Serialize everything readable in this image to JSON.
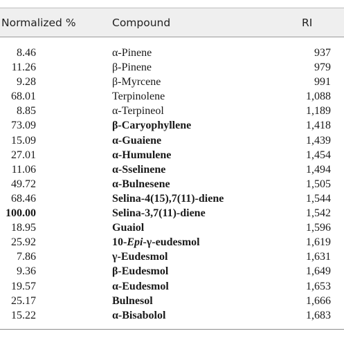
{
  "table": {
    "headers": {
      "normalized": "Normalized %",
      "compound": "Compound",
      "ri": "RI"
    },
    "rows": [
      {
        "normalized": "8.46",
        "compound": "α-Pinene",
        "ri": "937",
        "bold": false
      },
      {
        "normalized": "11.26",
        "compound": "β-Pinene",
        "ri": "979",
        "bold": false
      },
      {
        "normalized": "9.28",
        "compound": "β-Myrcene",
        "ri": "991",
        "bold": false
      },
      {
        "normalized": "68.01",
        "compound": "Terpinolene",
        "ri": "1,088",
        "bold": false
      },
      {
        "normalized": "8.85",
        "compound": "α-Terpineol",
        "ri": "1,189",
        "bold": false
      },
      {
        "normalized": "73.09",
        "compound": "β-Caryophyllene",
        "ri": "1,418",
        "bold": true
      },
      {
        "normalized": "15.09",
        "compound": "α-Guaiene",
        "ri": "1,439",
        "bold": true
      },
      {
        "normalized": "27.01",
        "compound": "α-Humulene",
        "ri": "1,454",
        "bold": true
      },
      {
        "normalized": "11.06",
        "compound": "α-Sselinene",
        "ri": "1,494",
        "bold": true
      },
      {
        "normalized": "49.72",
        "compound": "α-Bulnesene",
        "ri": "1,505",
        "bold": true
      },
      {
        "normalized": "68.46",
        "compound": "Selina-4(15),7(11)-diene",
        "ri": "1,544",
        "bold": true
      },
      {
        "normalized": "100.00",
        "normalized_bold": true,
        "compound": "Selina-3,7(11)-diene",
        "ri": "1,542",
        "bold": true
      },
      {
        "normalized": "18.95",
        "compound": "Guaiol",
        "ri": "1,596",
        "bold": true
      },
      {
        "normalized": "25.92",
        "compound_prefix": "10-",
        "compound_italic": "Epi",
        "compound_suffix": "-γ-eudesmol",
        "ri": "1,619",
        "bold": true
      },
      {
        "normalized": "7.86",
        "compound": "γ-Eudesmol",
        "ri": "1,631",
        "bold": true
      },
      {
        "normalized": "9.36",
        "compound": "β-Eudesmol",
        "ri": "1,649",
        "bold": true
      },
      {
        "normalized": "19.57",
        "compound": "α-Eudesmol",
        "ri": "1,653",
        "bold": true
      },
      {
        "normalized": "25.17",
        "compound": "Bulnesol",
        "ri": "1,666",
        "bold": true
      },
      {
        "normalized": "15.22",
        "compound": "α-Bisabolol",
        "ri": "1,683",
        "bold": true
      }
    ]
  }
}
